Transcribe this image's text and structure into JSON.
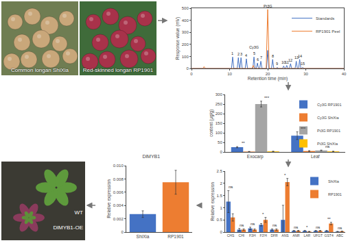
{
  "photos": [
    {
      "label": "Common longan ShiXia"
    },
    {
      "label": "Red-skinned longan RP1901"
    }
  ],
  "plant_photo": {
    "labels": [
      "WT",
      "DlMYB1-OE"
    ]
  },
  "chart_data": [
    {
      "type": "line",
      "x_label": "Retention time (min)",
      "y_label": "Response value (mV)",
      "xlim": [
        0,
        40
      ],
      "xticks": [
        0,
        10,
        20,
        30,
        40
      ],
      "ylim": [
        0,
        500
      ],
      "yticks": [
        0,
        100,
        200,
        300,
        400,
        500
      ],
      "legend": "upper right",
      "series": [
        {
          "name": "Standards",
          "color": "#4472c4",
          "x": [
            0,
            10.5,
            10.8,
            11.1,
            12.0,
            12.3,
            12.6,
            12.7,
            13.0,
            13.3,
            14.1,
            14.4,
            14.7,
            16.1,
            16.4,
            16.7,
            17.0,
            17.3,
            17.6,
            17.9,
            18.2,
            18.5,
            19.7,
            20.0,
            20.3,
            21.0,
            21.3,
            21.6,
            22.3,
            22.5,
            22.7,
            23.9,
            24.2,
            24.5,
            24.7,
            25.0,
            25.3,
            25.7,
            26.0,
            26.3,
            27.2,
            27.5,
            27.8,
            28.1,
            28.4,
            28.7,
            28.9,
            29.2,
            29.5,
            40
          ],
          "values": [
            0,
            0,
            95,
            0,
            0,
            90,
            0,
            0,
            90,
            0,
            0,
            80,
            0,
            0,
            95,
            0,
            0,
            45,
            0,
            0,
            60,
            0,
            0,
            150,
            0,
            0,
            75,
            0,
            0,
            10,
            0,
            0,
            20,
            0,
            0,
            25,
            0,
            0,
            40,
            0,
            0,
            60,
            0,
            0,
            75,
            0,
            0,
            10,
            0,
            0
          ]
        },
        {
          "name": "RP1901 Peel",
          "color": "#ed7d31",
          "x": [
            0,
            3.0,
            3.3,
            3.6,
            15.9,
            16.2,
            16.5,
            19.6,
            20.0,
            20.4,
            40
          ],
          "values": [
            0,
            0,
            15,
            0,
            0,
            25,
            0,
            0,
            490,
            0,
            0
          ]
        }
      ],
      "annotations": [
        {
          "text": "1",
          "x": 10.8,
          "y": 95
        },
        {
          "text": "2",
          "x": 12.3,
          "y": 90
        },
        {
          "text": "3",
          "x": 13.0,
          "y": 90
        },
        {
          "text": "4",
          "x": 14.4,
          "y": 80
        },
        {
          "text": "5",
          "x": 16.4,
          "y": 95
        },
        {
          "text": "6",
          "x": 17.3,
          "y": 45
        },
        {
          "text": "7",
          "x": 18.2,
          "y": 60
        },
        {
          "text": "8",
          "x": 21.3,
          "y": 75
        },
        {
          "text": "9",
          "x": 22.5,
          "y": 10
        },
        {
          "text": "10",
          "x": 24.2,
          "y": 20
        },
        {
          "text": "11",
          "x": 25.0,
          "y": 25
        },
        {
          "text": "12",
          "x": 26.0,
          "y": 40
        },
        {
          "text": "13",
          "x": 27.5,
          "y": 60
        },
        {
          "text": "14",
          "x": 28.4,
          "y": 75
        },
        {
          "text": "15",
          "x": 29.2,
          "y": 10
        },
        {
          "text": "Cy3G",
          "x": 16.4,
          "y": 150
        },
        {
          "text": "Pt3G",
          "x": 20.0,
          "y": 490
        }
      ]
    },
    {
      "type": "bar",
      "y_label": "content (μg/g)",
      "categories": [
        "Exocarp",
        "Leaf"
      ],
      "ylim": [
        0,
        300
      ],
      "yticks": [
        0,
        50,
        100,
        150,
        200,
        250,
        300
      ],
      "legend": "upper right",
      "series": [
        {
          "name": "Cy3G RP1901",
          "color": "#4472c4",
          "values": [
            25,
            85
          ],
          "errors": [
            3,
            20
          ]
        },
        {
          "name": "Cy3G ShiXia",
          "color": "#ed7d31",
          "values": [
            2,
            5
          ],
          "errors": [
            1,
            2
          ]
        },
        {
          "name": "Pt3G RP1901",
          "color": "#a5a5a5",
          "values": [
            250,
            8
          ],
          "errors": [
            15,
            2
          ]
        },
        {
          "name": "Pt3G ShiXia",
          "color": "#ffc000",
          "values": [
            3,
            3
          ],
          "errors": [
            1,
            1
          ]
        }
      ],
      "significance": [
        [
          "**",
          "***"
        ],
        [
          "***",
          "ns"
        ]
      ]
    },
    {
      "type": "bar",
      "y_label": "Relative expression",
      "categories": [
        "CHS",
        "CHI",
        "F3H",
        "F3'H",
        "DFR",
        "ANS",
        "ANR",
        "LAR",
        "UFGT",
        "GST4",
        "ABC"
      ],
      "ylim": [
        0,
        2.5
      ],
      "yticks": [
        0,
        0.5,
        1,
        1.5,
        2,
        2.5
      ],
      "legend": "upper right",
      "series": [
        {
          "name": "ShiXia",
          "color": "#4472c4",
          "values": [
            1.25,
            0.1,
            0.15,
            0.3,
            0.1,
            0.5,
            0.05,
            0.05,
            0.05,
            0.05,
            0.02
          ],
          "errors": [
            0.45,
            0.05,
            0.05,
            0.05,
            0.03,
            0.6,
            0.02,
            0.02,
            0.02,
            0.02,
            0.01
          ]
        },
        {
          "name": "RP1901",
          "color": "#ed7d31",
          "values": [
            0.6,
            0.1,
            0.1,
            0.5,
            0.1,
            2.05,
            0.05,
            0.02,
            0.05,
            0.35,
            0.03
          ],
          "errors": [
            0.15,
            0.03,
            0.03,
            0.1,
            0.03,
            0.15,
            0.02,
            0.01,
            0.02,
            0.05,
            0.01
          ]
        }
      ],
      "significance": [
        "ns",
        "ns",
        "ns",
        "*",
        "ns",
        "*",
        "ns",
        "*",
        "ns",
        "**",
        "ns"
      ]
    },
    {
      "type": "bar",
      "title": "DlMYB1",
      "y_label": "Relative expression",
      "categories": [
        "ShiXia",
        "RP1901"
      ],
      "colors": [
        "#4472c4",
        "#ed7d31"
      ],
      "values": [
        0.0027,
        0.0075
      ],
      "errors": [
        0.0005,
        0.0018
      ],
      "ylim": [
        0,
        0.01
      ],
      "yticks": [
        0,
        0.002,
        0.004,
        0.006,
        0.008,
        {
          "value": 0.01,
          "label": "0.010"
        }
      ]
    }
  ]
}
